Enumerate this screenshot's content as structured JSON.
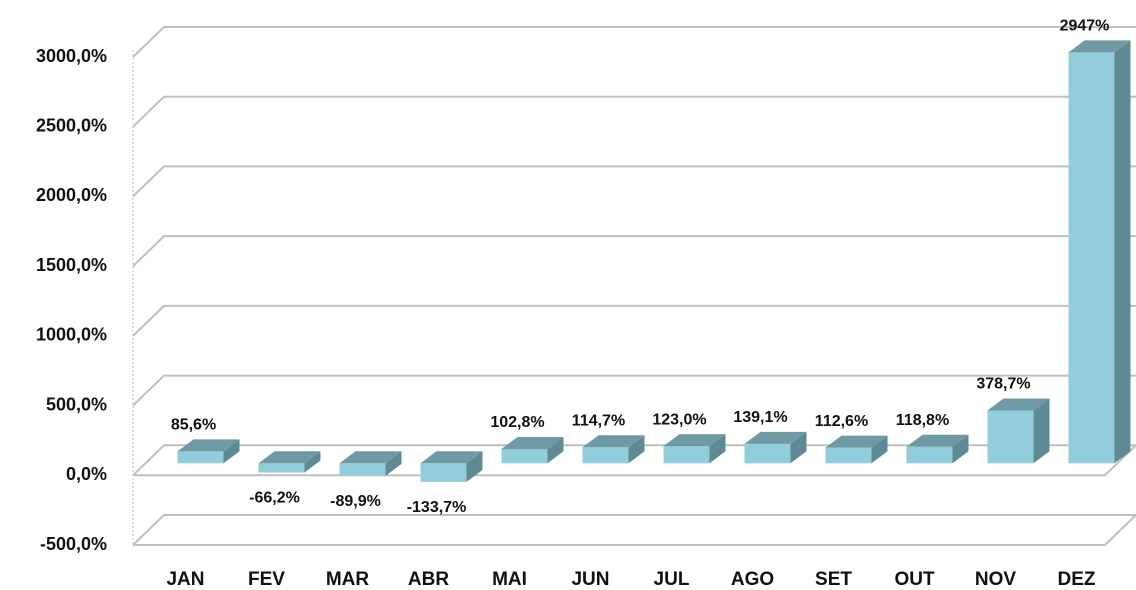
{
  "chart_data": {
    "type": "bar3d",
    "categories": [
      "JAN",
      "FEV",
      "MAR",
      "ABR",
      "MAI",
      "JUN",
      "JUL",
      "AGO",
      "SET",
      "OUT",
      "NOV",
      "DEZ"
    ],
    "values": [
      85.6,
      -66.2,
      -89.9,
      -133.7,
      102.8,
      114.7,
      123.0,
      139.1,
      112.6,
      118.8,
      378.7,
      2947
    ],
    "value_labels": [
      "85,6%",
      "-66,2%",
      "-89,9%",
      "-133,7%",
      "102,8%",
      "114,7%",
      "123,0%",
      "139,1%",
      "112,6%",
      "118,8%",
      "378,7%",
      "2947%"
    ],
    "color": "#92cddc",
    "ylim": [
      -500,
      3000
    ],
    "yticks": [
      {
        "value": -500,
        "label": "-500,0%"
      },
      {
        "value": 0,
        "label": "0,0%"
      },
      {
        "value": 500,
        "label": "500,0%"
      },
      {
        "value": 1000,
        "label": "1000,0%"
      },
      {
        "value": 1500,
        "label": "1500,0%"
      },
      {
        "value": 2000,
        "label": "2000,0%"
      },
      {
        "value": 2500,
        "label": "2500,0%"
      },
      {
        "value": 3000,
        "label": "3000,0%"
      }
    ],
    "grid": true
  }
}
